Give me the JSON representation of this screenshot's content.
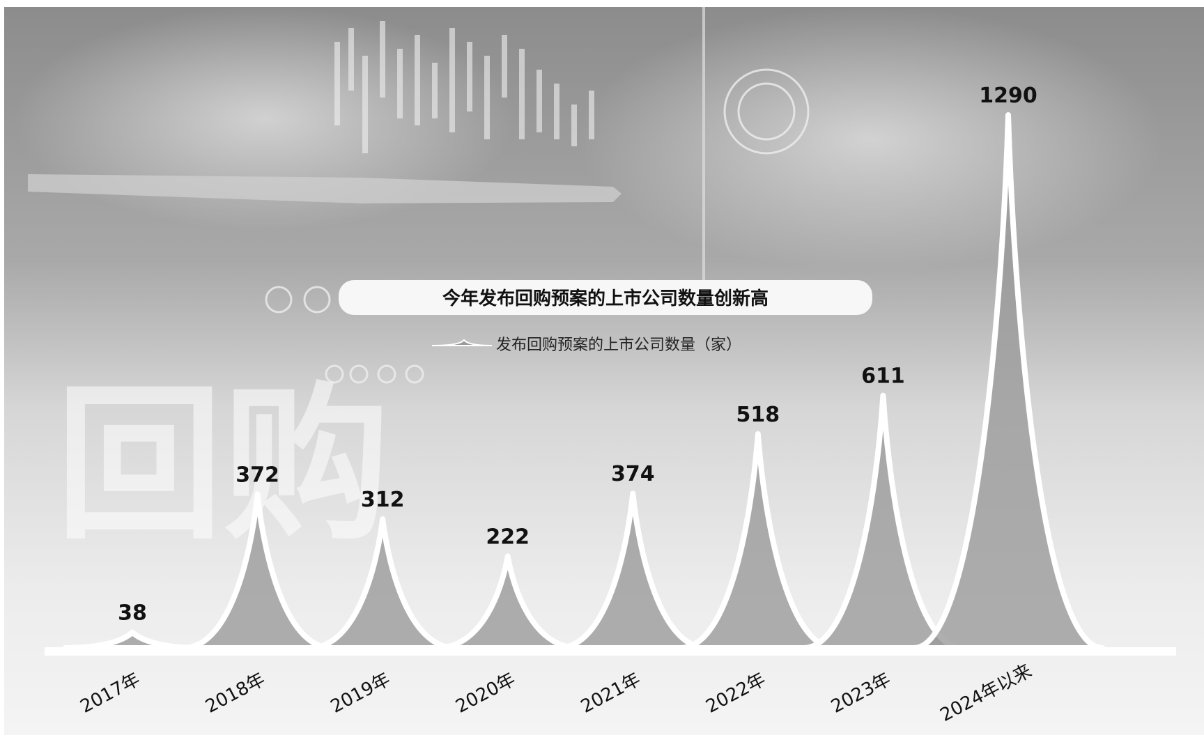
{
  "chart_data": {
    "type": "area",
    "title": "今年发布回购预案的上市公司数量创新高",
    "watermark": "回购",
    "legend": "发布回购预案的上市公司数量（家）",
    "categories": [
      "2017年",
      "2018年",
      "2019年",
      "2020年",
      "2021年",
      "2022年",
      "2023年",
      "2024年以来"
    ],
    "series": [
      {
        "name": "发布回购预案的上市公司数量（家）",
        "values": [
          38,
          372,
          312,
          222,
          374,
          518,
          611,
          1290
        ]
      }
    ],
    "data_labels": [
      "38",
      "372",
      "312",
      "222",
      "374",
      "518",
      "611",
      "1290"
    ],
    "ylim": [
      0,
      1290
    ],
    "grid": false,
    "legend_position": "top-center",
    "colors": {
      "background": "#ffffff",
      "photo_dark": "#8f8f8f",
      "photo_light": "#e6e6e6",
      "area": "#9b9b9b",
      "outline": "#ffffff",
      "text": "#111111"
    }
  }
}
